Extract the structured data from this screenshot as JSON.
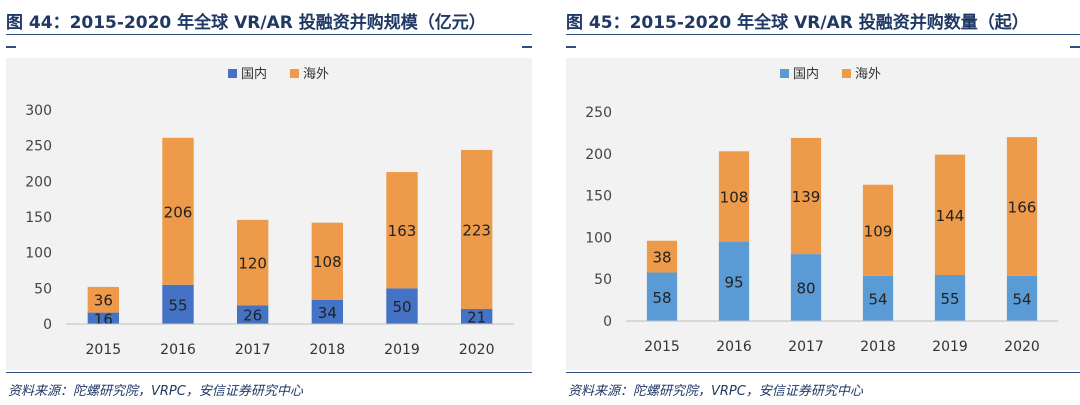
{
  "panels": [
    {
      "title": "图 44：2015-2020 年全球 VR/AR 投融资并购规模（亿元）",
      "source": "资料来源：陀螺研究院，VRPC，安信证券研究中心",
      "chart_data": {
        "type": "bar",
        "stacked": true,
        "categories": [
          "2015",
          "2016",
          "2017",
          "2018",
          "2019",
          "2020"
        ],
        "series": [
          {
            "name": "国内",
            "values": [
              16,
              55,
              26,
              34,
              50,
              21
            ],
            "color": "#4472c4"
          },
          {
            "name": "海外",
            "values": [
              36,
              206,
              120,
              108,
              163,
              223
            ],
            "color": "#ed9b4a"
          }
        ],
        "ylim": [
          0,
          300
        ],
        "yticks": [
          0,
          50,
          100,
          150,
          200,
          250,
          300
        ],
        "legend": "top-center",
        "grid": false
      }
    },
    {
      "title": "图 45：2015-2020 年全球 VR/AR 投融资并购数量（起）",
      "source": "资料来源：陀螺研究院，VRPC，安信证券研究中心",
      "chart_data": {
        "type": "bar",
        "stacked": true,
        "categories": [
          "2015",
          "2016",
          "2017",
          "2018",
          "2019",
          "2020"
        ],
        "series": [
          {
            "name": "国内",
            "values": [
              58,
              95,
              80,
              54,
              55,
              54
            ],
            "color": "#5b9bd5"
          },
          {
            "name": "海外",
            "values": [
              38,
              108,
              139,
              109,
              144,
              166
            ],
            "color": "#ed9b4a"
          }
        ],
        "ylim": [
          0,
          250
        ],
        "yticks": [
          0,
          50,
          100,
          150,
          200,
          250
        ],
        "legend": "top-center",
        "grid": false
      }
    }
  ]
}
